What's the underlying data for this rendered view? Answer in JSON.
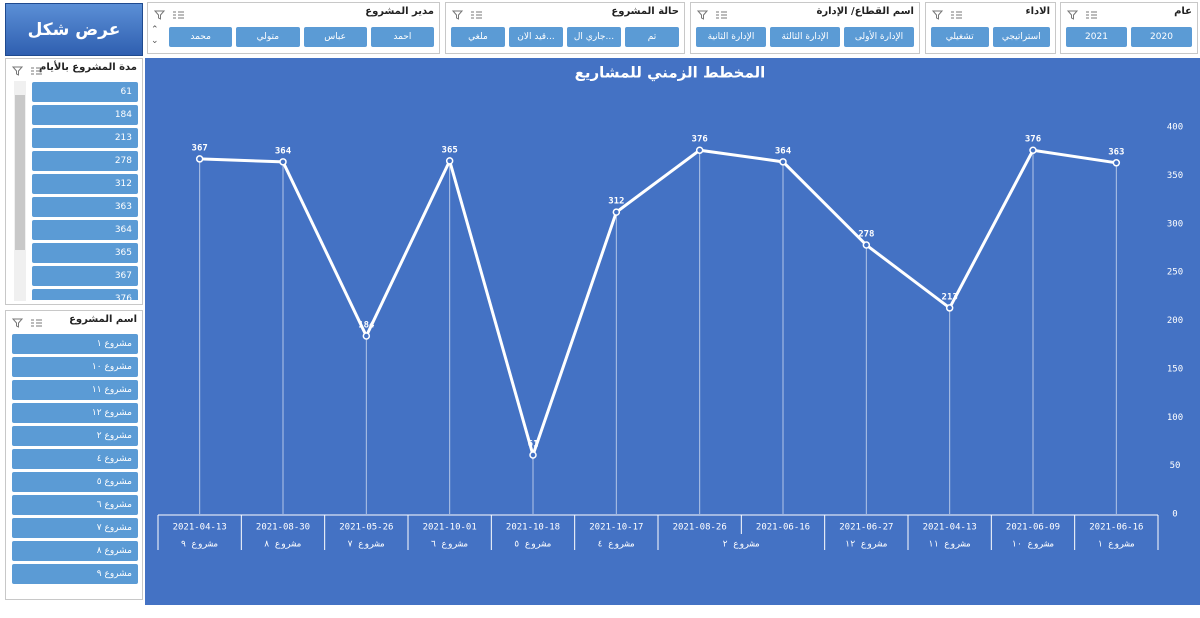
{
  "action_button": "عرض شكل",
  "slicers": [
    {
      "title": "عام",
      "items": [
        "2020",
        "2021"
      ]
    },
    {
      "title": "الاداء",
      "items": [
        "استراتيجي",
        "تشغيلي"
      ]
    },
    {
      "title": "اسم القطاع/ الإدارة",
      "items": [
        "الإدارة الأولى",
        "الإدارة الثالثة",
        "الإدارة الثانية"
      ]
    },
    {
      "title": "حالة المشروع",
      "items": [
        "تم",
        "جاري ال...",
        "قيد الان...",
        "ملغي"
      ]
    },
    {
      "title": "مدير المشروع",
      "items": [
        "احمد",
        "عباس",
        "متولي",
        "محمد"
      ]
    }
  ],
  "side_slicers": [
    {
      "title": "مدة المشروع بالأيام",
      "items": [
        61,
        184,
        213,
        278,
        312,
        363,
        364,
        365,
        367,
        376
      ]
    },
    {
      "title": "اسم المشروع",
      "items": [
        "مشروع ١",
        "مشروع ١٠",
        "مشروع ١١",
        "مشروع ١٢",
        "مشروع ٢",
        "مشروع ٤",
        "مشروع ٥",
        "مشروع ٦",
        "مشروع ٧",
        "مشروع ٨",
        "مشروع ٩"
      ]
    }
  ],
  "chart_data": {
    "type": "line",
    "title": "المخطط الزمني للمشاريع",
    "categories": [
      "2021-04-13",
      "2021-08-30",
      "2021-05-26",
      "2021-10-01",
      "2021-10-18",
      "2021-10-17",
      "2021-08-26",
      "2021-06-16",
      "2021-06-27",
      "2021-04-13",
      "2021-06-09",
      "2021-06-16"
    ],
    "category_groups": [
      "مشروع ٩",
      "مشروع ٨",
      "مشروع ٧",
      "مشروع ٦",
      "مشروع ٥",
      "مشروع ٤",
      "مشروع ٢",
      null,
      "مشروع ١٢",
      "مشروع ١١",
      "مشروع ١٠",
      "مشروع ١"
    ],
    "values": [
      367,
      364,
      184,
      365,
      61,
      312,
      376,
      364,
      278,
      213,
      376,
      363
    ],
    "color": "#ffffff",
    "ylim": [
      0,
      400
    ],
    "yticks": [
      0,
      50,
      100,
      150,
      200,
      250,
      300,
      350,
      400
    ],
    "grid": false
  }
}
